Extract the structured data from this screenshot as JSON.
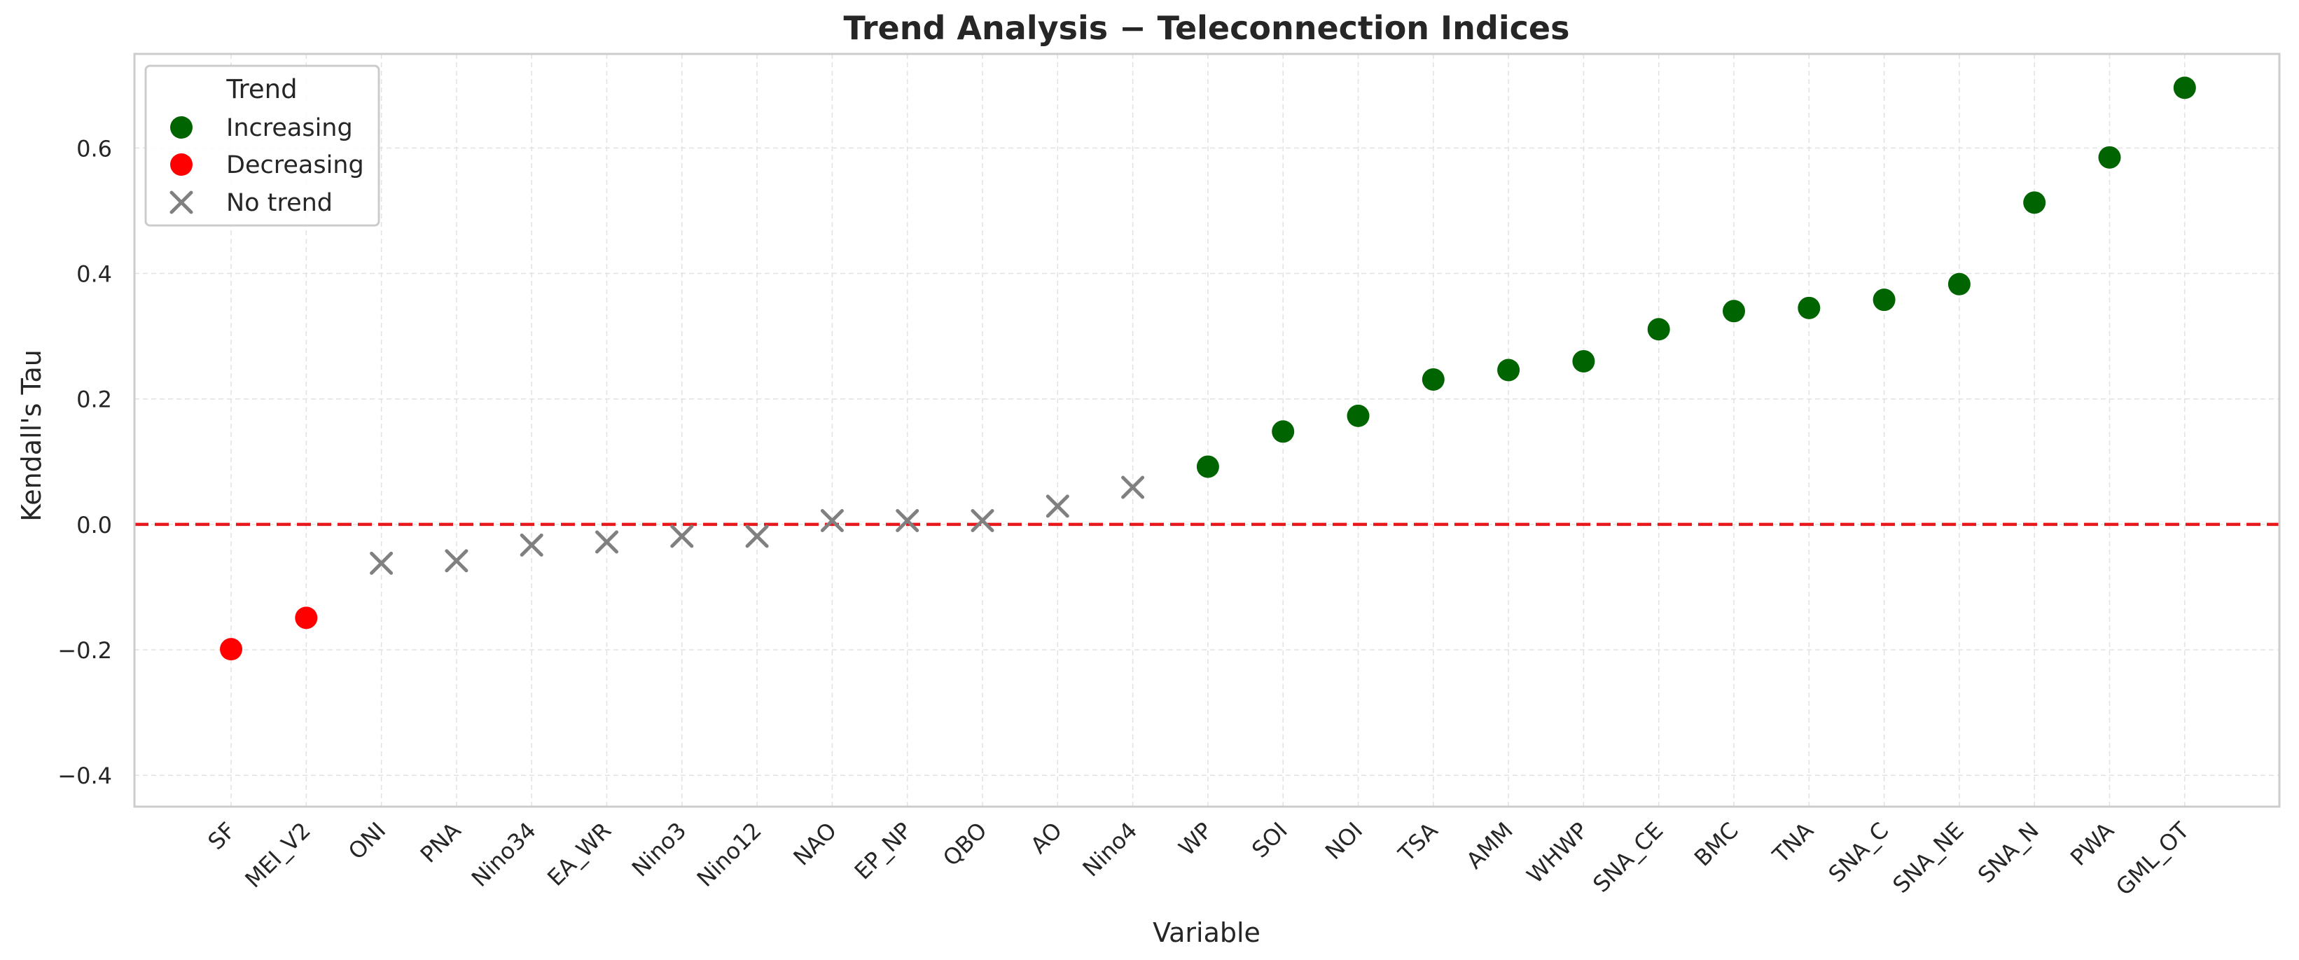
{
  "chart_data": {
    "type": "scatter",
    "title": "Trend Analysis − Teleconnection Indices",
    "xlabel": "Variable",
    "ylabel": "Kendall's Tau",
    "ylim": [
      -0.45,
      0.75
    ],
    "yticks": [
      -0.4,
      -0.2,
      0.0,
      0.2,
      0.4,
      0.6
    ],
    "ytick_labels": [
      "−0.4",
      "−0.2",
      "0.0",
      "0.2",
      "0.4",
      "0.6"
    ],
    "grid": true,
    "reference_line": {
      "y": 0.0,
      "color": "#e8191d",
      "style": "dashed"
    },
    "legend": {
      "title": "Trend",
      "placement": "top-left",
      "entries": [
        {
          "label": "Increasing",
          "marker": "circle",
          "color": "#006400"
        },
        {
          "label": "Decreasing",
          "marker": "circle",
          "color": "#ff0000"
        },
        {
          "label": "No trend",
          "marker": "x",
          "color": "#808080"
        }
      ]
    },
    "categories": [
      "SF",
      "MEI_V2",
      "ONI",
      "PNA",
      "Nino34",
      "EA_WR",
      "Nino3",
      "Nino12",
      "NAO",
      "EP_NP",
      "QBO",
      "AO",
      "Nino4",
      "WP",
      "SOI",
      "NOI",
      "TSA",
      "AMM",
      "WHWP",
      "SNA_CE",
      "BMC",
      "TNA",
      "SNA_C",
      "SNA_NE",
      "SNA_N",
      "PWA",
      "GML_OT"
    ],
    "values": [
      -0.199,
      -0.149,
      -0.062,
      -0.058,
      -0.033,
      -0.028,
      -0.019,
      -0.019,
      0.006,
      0.006,
      0.006,
      0.029,
      0.059,
      0.092,
      0.148,
      0.173,
      0.231,
      0.246,
      0.26,
      0.311,
      0.34,
      0.345,
      0.358,
      0.383,
      0.513,
      0.585,
      0.696
    ],
    "trend": [
      "Decreasing",
      "Decreasing",
      "No trend",
      "No trend",
      "No trend",
      "No trend",
      "No trend",
      "No trend",
      "No trend",
      "No trend",
      "No trend",
      "No trend",
      "No trend",
      "Increasing",
      "Increasing",
      "Increasing",
      "Increasing",
      "Increasing",
      "Increasing",
      "Increasing",
      "Increasing",
      "Increasing",
      "Increasing",
      "Increasing",
      "Increasing",
      "Increasing",
      "Increasing"
    ]
  },
  "colors": {
    "increasing": "#006400",
    "decreasing": "#ff0000",
    "no_trend": "#808080",
    "axes_frame": "#cccccc",
    "grid": "#e2e2e2",
    "text": "#262626"
  }
}
